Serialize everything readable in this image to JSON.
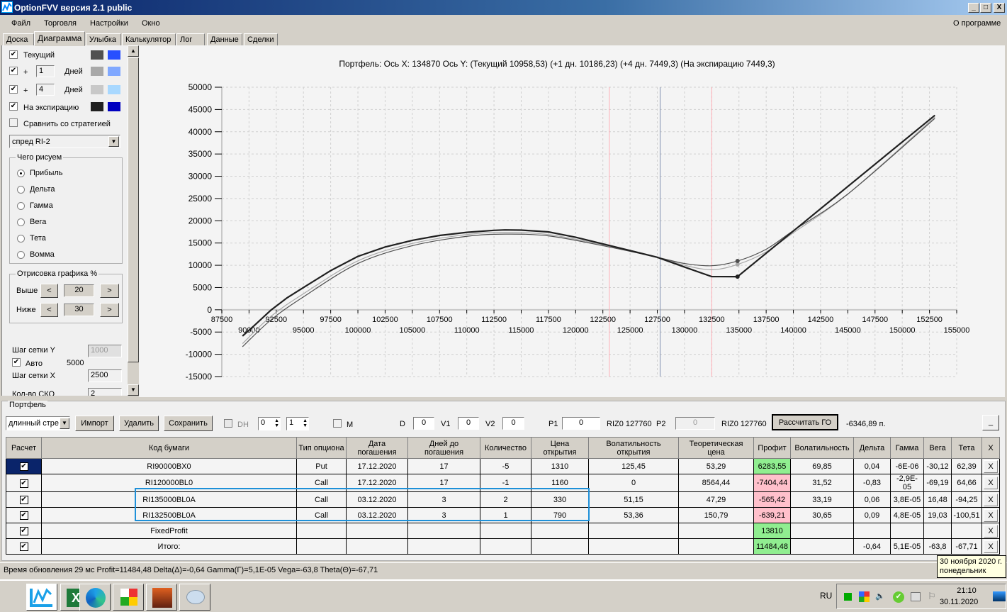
{
  "window": {
    "title": "OptionFVV версия 2.1 public",
    "min": "_",
    "max": "□",
    "close": "X"
  },
  "menu": {
    "items": [
      "Файл",
      "Торговля",
      "Настройки",
      "Окно"
    ],
    "about": "О программе"
  },
  "tabs": [
    "Доска",
    "Диаграмма",
    "Улыбка",
    "Калькулятор",
    "Лог",
    "Данные",
    "Сделки"
  ],
  "active_tab": "Диаграмма",
  "left": {
    "current": {
      "label": "Текущий",
      "checked": true,
      "colors": [
        "#505050",
        "#2850ff"
      ]
    },
    "plus1": {
      "prefix": "+",
      "value": "1",
      "unit": "Дней",
      "checked": true,
      "colors": [
        "#a8a8a8",
        "#80a8ff"
      ]
    },
    "plus4": {
      "prefix": "+",
      "value": "4",
      "unit": "Дней",
      "checked": true,
      "colors": [
        "#c8c8c8",
        "#a8d8ff"
      ]
    },
    "expiry": {
      "label": "На экспирацию",
      "checked": true,
      "colors": [
        "#202020",
        "#0000c0"
      ]
    },
    "compare": {
      "label": "Сравнить со стратегией",
      "checked": false
    },
    "strategy_select": "спред RI-2",
    "draw_group": {
      "title": "Чего рисуем",
      "options": [
        "Прибыль",
        "Дельта",
        "Гамма",
        "Вега",
        "Тета",
        "Вомма"
      ],
      "selected": "Прибыль"
    },
    "range_group": {
      "title": "Отрисовка графика %",
      "above_label": "Выше",
      "above": "20",
      "below_label": "Ниже",
      "below": "30",
      "dec": "<",
      "inc": ">"
    },
    "grid_y_label": "Шаг сетки Y",
    "grid_y": "1000",
    "auto_label": "Авто",
    "auto_checked": true,
    "auto_value": "5000",
    "grid_x_label": "Шаг сетки X",
    "grid_x": "2500",
    "sko_label": "Кол-во СКО",
    "sko": "2"
  },
  "chart_data": {
    "type": "line",
    "title": "Портфель: Ось X: 134870 Ось Y:  (Текущий 10958,53)  (+1 дн. 10186,23)  (+4 дн. 7449,3)  (На экспирацию 7449,3)",
    "xlim": [
      87500,
      155000
    ],
    "ylim": [
      -15000,
      50000
    ],
    "xticks": [
      87500,
      90000,
      92500,
      95000,
      97500,
      100000,
      102500,
      105000,
      107500,
      110000,
      112500,
      115000,
      117500,
      120000,
      122500,
      125000,
      127500,
      130000,
      132500,
      135000,
      137500,
      140000,
      142500,
      145000,
      147500,
      150000,
      152500,
      155000
    ],
    "yticks": [
      50000,
      45000,
      40000,
      35000,
      30000,
      25000,
      20000,
      15000,
      10000,
      5000,
      0,
      -5000,
      -10000,
      -15000
    ],
    "grid": true,
    "vlines": [
      {
        "x": 123100,
        "color": "#ffb0b8"
      },
      {
        "x": 127760,
        "color": "#8090b0"
      },
      {
        "x": 132500,
        "color": "#ffb0b8"
      }
    ],
    "cursor_x": 134870,
    "series": [
      {
        "name": "Текущий",
        "color": "#505050",
        "width": 1.2,
        "marker_y": 10958.53,
        "x": [
          89400,
          92000,
          95000,
          100000,
          105000,
          110000,
          113500,
          117500,
          122500,
          127500,
          130000,
          132500,
          134870,
          137500,
          140000,
          145000,
          153000
        ],
        "y": [
          -8300,
          -2300,
          2900,
          10400,
          14400,
          16500,
          17000,
          16600,
          14400,
          11800,
          10400,
          9900,
          10958,
          13600,
          17800,
          26000,
          43000
        ]
      },
      {
        "name": "+1 дн.",
        "color": "#a8a8a8",
        "width": 1.2,
        "marker_y": 10186.23,
        "x": [
          89400,
          92000,
          95000,
          100000,
          105000,
          110000,
          113500,
          117500,
          122500,
          127500,
          130000,
          132500,
          134870,
          137500,
          140000,
          145000,
          153000
        ],
        "y": [
          -7600,
          -1500,
          3600,
          11000,
          14900,
          16900,
          17400,
          16900,
          14600,
          11800,
          10000,
          9000,
          10186,
          13000,
          17300,
          26000,
          43300
        ]
      },
      {
        "name": "На экспирацию",
        "color": "#202020",
        "width": 2.2,
        "marker_y": 7449.3,
        "linear": true,
        "x": [
          89400,
          90500,
          92000,
          93500,
          95000,
          97500,
          100000,
          102500,
          105000,
          107500,
          110000,
          112500,
          113500,
          115000,
          117500,
          120000,
          122500,
          125000,
          127500,
          130000,
          132500,
          134870,
          153000
        ],
        "y": [
          -5900,
          -3500,
          -100,
          2700,
          5000,
          8800,
          12000,
          14100,
          15600,
          16700,
          17400,
          17850,
          17950,
          17900,
          17500,
          16300,
          14800,
          13300,
          11800,
          9600,
          7450,
          7449,
          43700
        ]
      }
    ]
  },
  "portfolio": {
    "title": "Портфель",
    "strategy": "длинный стре",
    "import": "Импорт",
    "delete": "Удалить",
    "save": "Сохранить",
    "dh_label": "DH",
    "spin1": "0",
    "spin2": "1",
    "m_label": "M",
    "d_label": "D",
    "d": "0",
    "v1_label": "V1",
    "v1": "0",
    "v2_label": "V2",
    "v2": "0",
    "p1_label": "P1",
    "p1": "0",
    "riz1": "RIZ0 127760",
    "p2_label": "P2",
    "p2": "0",
    "riz2": "RIZ0 127760",
    "calc_go": "Рассчитать ГО",
    "go_value": "-6346,89 п.",
    "minimize": "_",
    "columns": [
      "Расчет",
      "Код бумаги",
      "Тип опциона",
      "Дата погашения",
      "Дней до погашения",
      "Количество",
      "Цена открытия",
      "Волатильность открытия",
      "Теоретическая цена",
      "Профит",
      "Волатильность",
      "Дельта",
      "Гамма",
      "Вега",
      "Тета",
      "X"
    ],
    "rows": [
      {
        "code": "RI90000BX0",
        "type": "Put",
        "date": "17.12.2020",
        "days": "17",
        "qty": "-5",
        "price": "1310",
        "vol_open": "125,45",
        "theo": "53,29",
        "profit": "6283,55",
        "pc": "pos",
        "vol": "69,85",
        "delta": "0,04",
        "gamma": "-6E-06",
        "vega": "-30,12",
        "theta": "62,39"
      },
      {
        "code": "RI120000BL0",
        "type": "Call",
        "date": "17.12.2020",
        "days": "17",
        "qty": "-1",
        "price": "1160",
        "vol_open": "0",
        "theo": "8564,44",
        "profit": "-7404,44",
        "pc": "neg",
        "vol": "31,52",
        "delta": "-0,83",
        "gamma": "-2,9E-05",
        "vega": "-69,19",
        "theta": "64,66"
      },
      {
        "code": "RI135000BL0A",
        "type": "Call",
        "date": "03.12.2020",
        "days": "3",
        "qty": "2",
        "price": "330",
        "vol_open": "51,15",
        "theo": "47,29",
        "profit": "-565,42",
        "pc": "neg",
        "vol": "33,19",
        "delta": "0,06",
        "gamma": "3,8E-05",
        "vega": "16,48",
        "theta": "-94,25"
      },
      {
        "code": "RI132500BL0A",
        "type": "Call",
        "date": "03.12.2020",
        "days": "3",
        "qty": "1",
        "price": "790",
        "vol_open": "53,36",
        "theo": "150,79",
        "profit": "-639,21",
        "pc": "neg",
        "vol": "30,65",
        "delta": "0,09",
        "gamma": "4,8E-05",
        "vega": "19,03",
        "theta": "-100,51"
      },
      {
        "code": "FixedProfit",
        "type": "",
        "date": "",
        "days": "",
        "qty": "",
        "price": "",
        "vol_open": "",
        "theo": "",
        "profit": "13810",
        "pc": "pos",
        "vol": "",
        "delta": "",
        "gamma": "",
        "vega": "",
        "theta": ""
      },
      {
        "code": "Итого:",
        "type": "",
        "date": "",
        "days": "",
        "qty": "",
        "price": "",
        "vol_open": "",
        "theo": "",
        "profit": "11484,48",
        "pc": "pos",
        "vol": "",
        "delta": "-0,64",
        "gamma": "5,1E-05",
        "vega": "-63,8",
        "theta": "-67,71"
      }
    ],
    "highlight_color": "#1e90d8"
  },
  "status": "Время обновления 29 мс  Profit=11484,48 Delta(Δ)=-0,64 Gamma(Γ)=5,1E-05 Vega=-63,8 Theta(Θ)=-67,71",
  "taskbar": {
    "apps": [
      "optionfvv-icon",
      "excel-icon",
      "edge-icon",
      "rubik-cube-icon",
      "game-avatar-icon",
      "paint-icon"
    ],
    "lang": "RU",
    "time": "21:10",
    "date": "30.11.2020",
    "tooltip": [
      "30 ноября 2020 г.",
      "понедельник"
    ]
  }
}
